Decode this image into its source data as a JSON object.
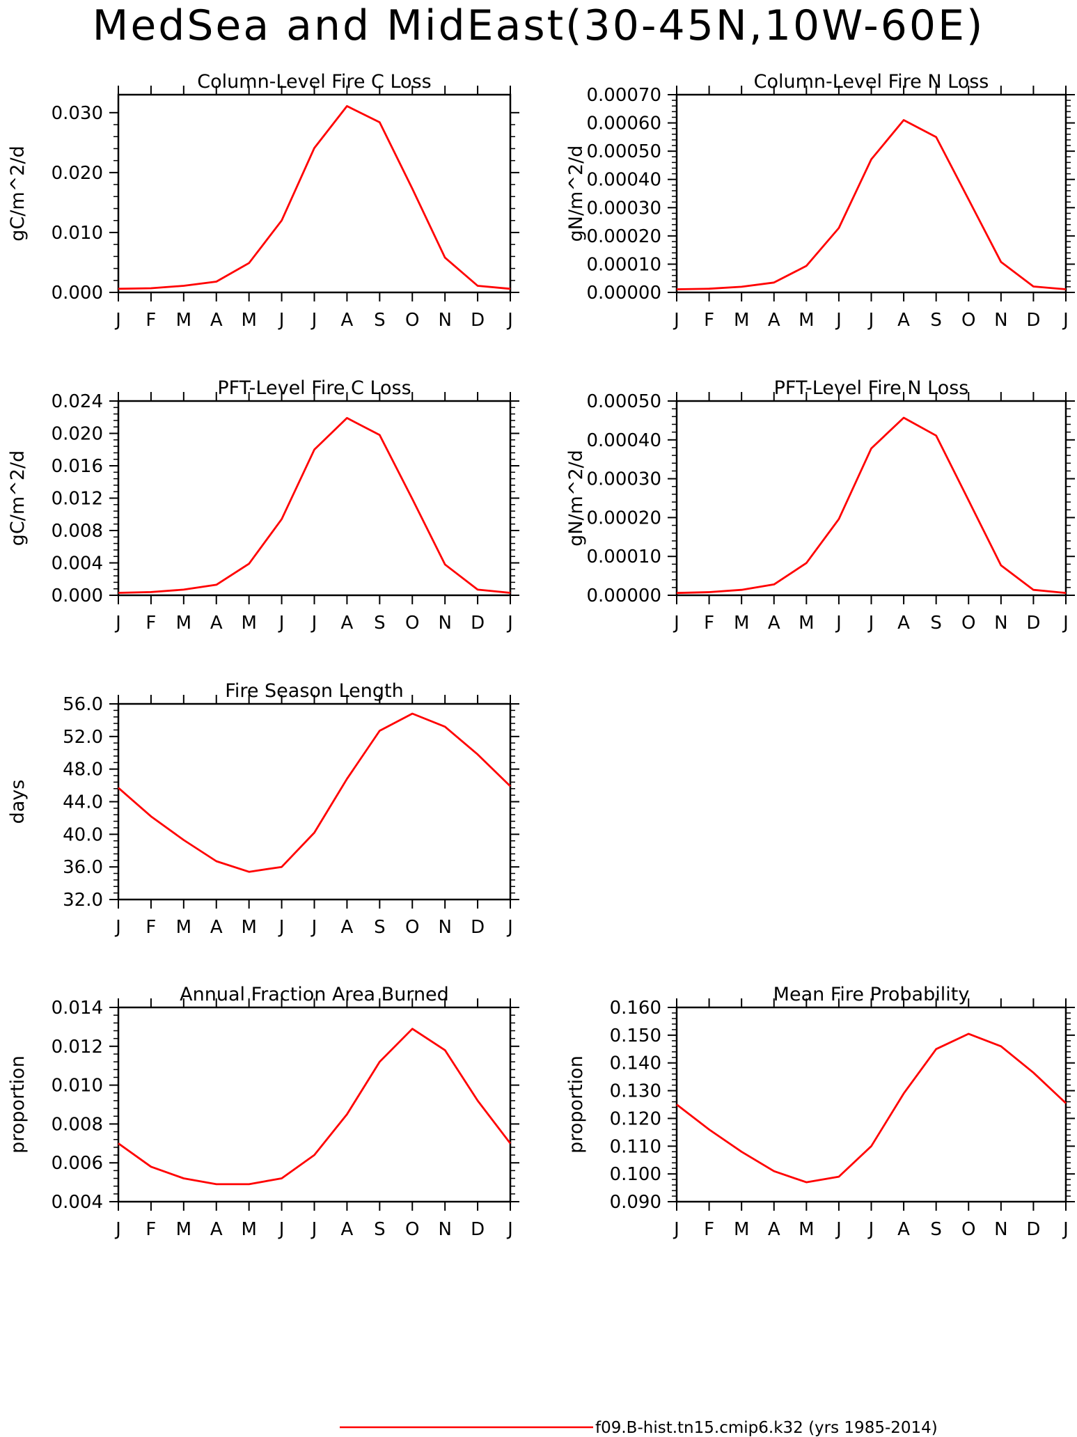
{
  "figure": {
    "title": "MedSea and MidEast(30-45N,10W-60E)",
    "legend": {
      "label": "f09.B-hist.tn15.cmip6.k32 (yrs 1985-2014)",
      "color": "#ff0000",
      "placement": "bottom-right"
    }
  },
  "colors": {
    "line": "#ff0000",
    "axis": "#000000",
    "background": "#ffffff"
  },
  "chart_data": [
    {
      "id": "col-c",
      "type": "line",
      "title": "Column-Level Fire C Loss",
      "ylabel": "gC/m^2/d",
      "xlabel": "",
      "categories": [
        "J",
        "F",
        "M",
        "A",
        "M",
        "J",
        "J",
        "A",
        "S",
        "O",
        "N",
        "D",
        "J"
      ],
      "ylim": [
        0,
        0.033
      ],
      "yticks": [
        "0.000",
        "0.010",
        "0.020",
        "0.030"
      ],
      "ytick_values": [
        0,
        0.01,
        0.02,
        0.03
      ],
      "values": [
        0.0006,
        0.0007,
        0.0011,
        0.0018,
        0.0049,
        0.012,
        0.0241,
        0.0311,
        0.0284,
        0.0173,
        0.0058,
        0.0011,
        0.0006
      ]
    },
    {
      "id": "col-n",
      "type": "line",
      "title": "Column-Level Fire N Loss",
      "ylabel": "gN/m^2/d",
      "xlabel": "",
      "categories": [
        "J",
        "F",
        "M",
        "A",
        "M",
        "J",
        "J",
        "A",
        "S",
        "O",
        "N",
        "D",
        "J"
      ],
      "ylim": [
        0,
        0.0007
      ],
      "yticks": [
        "0.00000",
        "0.00010",
        "0.00020",
        "0.00030",
        "0.00040",
        "0.00050",
        "0.00060",
        "0.00070"
      ],
      "ytick_values": [
        0,
        0.0001,
        0.0002,
        0.0003,
        0.0004,
        0.0005,
        0.0006,
        0.0007
      ],
      "values": [
        1.1e-05,
        1.3e-05,
        2e-05,
        3.5e-05,
        9.4e-05,
        0.000228,
        0.000471,
        0.00061,
        0.00055,
        0.000329,
        0.000108,
        2.1e-05,
        1.1e-05
      ]
    },
    {
      "id": "pft-c",
      "type": "line",
      "title": "PFT-Level Fire C Loss",
      "ylabel": "gC/m^2/d",
      "xlabel": "",
      "categories": [
        "J",
        "F",
        "M",
        "A",
        "M",
        "J",
        "J",
        "A",
        "S",
        "O",
        "N",
        "D",
        "J"
      ],
      "ylim": [
        0,
        0.024
      ],
      "yticks": [
        "0.000",
        "0.004",
        "0.008",
        "0.012",
        "0.016",
        "0.020",
        "0.024"
      ],
      "ytick_values": [
        0,
        0.004,
        0.008,
        0.012,
        0.016,
        0.02,
        0.024
      ],
      "values": [
        0.0003,
        0.0004,
        0.0007,
        0.0013,
        0.0039,
        0.0094,
        0.018,
        0.0219,
        0.0198,
        0.0119,
        0.0038,
        0.0007,
        0.0003
      ]
    },
    {
      "id": "pft-n",
      "type": "line",
      "title": "PFT-Level Fire N Loss",
      "ylabel": "gN/m^2/d",
      "xlabel": "",
      "categories": [
        "J",
        "F",
        "M",
        "A",
        "M",
        "J",
        "J",
        "A",
        "S",
        "O",
        "N",
        "D",
        "J"
      ],
      "ylim": [
        0,
        0.0005
      ],
      "yticks": [
        "0.00000",
        "0.00010",
        "0.00020",
        "0.00030",
        "0.00040",
        "0.00050"
      ],
      "ytick_values": [
        0,
        0.0001,
        0.0002,
        0.0003,
        0.0004,
        0.0005
      ],
      "values": [
        6e-06,
        8e-06,
        1.4e-05,
        2.8e-05,
        8.3e-05,
        0.000196,
        0.000378,
        0.000457,
        0.000411,
        0.000244,
        7.7e-05,
        1.4e-05,
        6e-06
      ]
    },
    {
      "id": "season",
      "type": "line",
      "title": "Fire Season Length",
      "ylabel": "days",
      "xlabel": "",
      "categories": [
        "J",
        "F",
        "M",
        "A",
        "M",
        "J",
        "J",
        "A",
        "S",
        "O",
        "N",
        "D",
        "J"
      ],
      "ylim": [
        32,
        56
      ],
      "yticks": [
        "32.0",
        "36.0",
        "40.0",
        "44.0",
        "48.0",
        "52.0",
        "56.0"
      ],
      "ytick_values": [
        32,
        36,
        40,
        44,
        48,
        52,
        56
      ],
      "values": [
        45.7,
        42.2,
        39.3,
        36.7,
        35.4,
        36.0,
        40.2,
        46.8,
        52.7,
        54.8,
        53.2,
        49.8,
        45.9
      ]
    },
    {
      "id": "burned",
      "type": "line",
      "title": "Annual Fraction Area Burned",
      "ylabel": "proportion",
      "xlabel": "",
      "categories": [
        "J",
        "F",
        "M",
        "A",
        "M",
        "J",
        "J",
        "A",
        "S",
        "O",
        "N",
        "D",
        "J"
      ],
      "ylim": [
        0.004,
        0.014
      ],
      "yticks": [
        "0.004",
        "0.006",
        "0.008",
        "0.010",
        "0.012",
        "0.014"
      ],
      "ytick_values": [
        0.004,
        0.006,
        0.008,
        0.01,
        0.012,
        0.014
      ],
      "values": [
        0.007,
        0.0058,
        0.0052,
        0.0049,
        0.0049,
        0.0052,
        0.0064,
        0.0085,
        0.0112,
        0.0129,
        0.0118,
        0.0092,
        0.007
      ]
    },
    {
      "id": "prob",
      "type": "line",
      "title": "Mean Fire Probability",
      "ylabel": "proportion",
      "xlabel": "",
      "categories": [
        "J",
        "F",
        "M",
        "A",
        "M",
        "J",
        "J",
        "A",
        "S",
        "O",
        "N",
        "D",
        "J"
      ],
      "ylim": [
        0.09,
        0.16
      ],
      "yticks": [
        "0.090",
        "0.100",
        "0.110",
        "0.120",
        "0.130",
        "0.140",
        "0.150",
        "0.160"
      ],
      "ytick_values": [
        0.09,
        0.1,
        0.11,
        0.12,
        0.13,
        0.14,
        0.15,
        0.16
      ],
      "values": [
        0.125,
        0.116,
        0.108,
        0.101,
        0.097,
        0.099,
        0.11,
        0.129,
        0.145,
        0.1505,
        0.146,
        0.1365,
        0.1255
      ]
    }
  ]
}
